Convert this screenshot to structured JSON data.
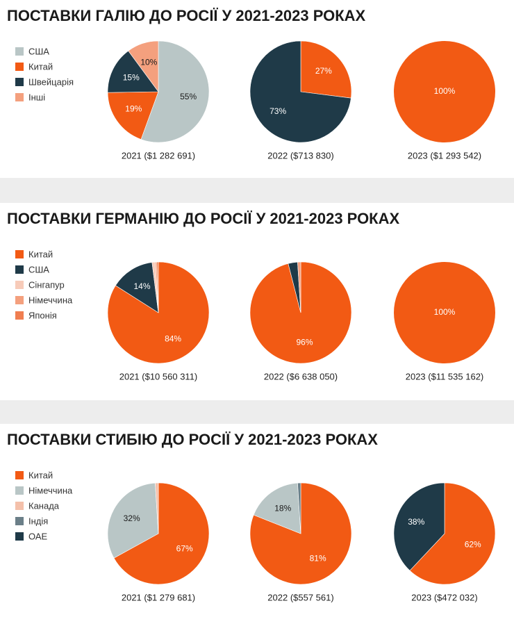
{
  "chart_data": [
    {
      "type": "pie",
      "title": "ПОСТАВКИ ГАЛІЮ ДО РОСІЇ У 2021-2023 РОКАХ",
      "categories": [
        "США",
        "Китай",
        "Швейцарія",
        "Інші"
      ],
      "colors": [
        "#b9c6c6",
        "#f25a14",
        "#1f3a48",
        "#f4a07e"
      ],
      "pies": [
        {
          "caption": "2021 ($1 282 691)",
          "values": [
            55,
            19,
            15,
            10
          ],
          "value_labels": [
            "55%",
            "19%",
            "15%",
            "10%"
          ]
        },
        {
          "caption": "2022 ($713 830)",
          "values": [
            0,
            27,
            73,
            0
          ],
          "value_labels": [
            null,
            "27%",
            "73%",
            null
          ]
        },
        {
          "caption": "2023 ($1 293 542)",
          "values": [
            0,
            100,
            0,
            0
          ],
          "value_labels": [
            null,
            "100%",
            null,
            null
          ]
        }
      ]
    },
    {
      "type": "pie",
      "title": "ПОСТАВКИ ГЕРМАНІЮ ДО РОСІЇ У 2021-2023 РОКАХ",
      "categories": [
        "Китай",
        "США",
        "Сінгапур",
        "Німеччина",
        "Японія"
      ],
      "colors": [
        "#f25a14",
        "#1f3a48",
        "#f7cbb9",
        "#f4a07e",
        "#f07e50"
      ],
      "pies": [
        {
          "caption": "2021 ($10 560 311)",
          "values": [
            84,
            14,
            1,
            0.5,
            0.5
          ],
          "value_labels": [
            "84%",
            "14%",
            null,
            null,
            null
          ]
        },
        {
          "caption": "2022 ($6 638 050)",
          "values": [
            96,
            3,
            0,
            1,
            0
          ],
          "value_labels": [
            "96%",
            null,
            null,
            null,
            null
          ]
        },
        {
          "caption": "2023 ($11 535 162)",
          "values": [
            100,
            0,
            0,
            0,
            0
          ],
          "value_labels": [
            "100%",
            null,
            null,
            null,
            null
          ]
        }
      ]
    },
    {
      "type": "pie",
      "title": "ПОСТАВКИ СТИБІЮ ДО РОСІЇ У 2021-2023 РОКАХ",
      "categories": [
        "Китай",
        "Німеччина",
        "Канада",
        "Індія",
        "ОАЕ"
      ],
      "colors": [
        "#f25a14",
        "#b9c6c6",
        "#f4c0aa",
        "#6b7f88",
        "#1f3a48"
      ],
      "pies": [
        {
          "caption": "2021 ($1 279 681)",
          "values": [
            67,
            32,
            1,
            0,
            0
          ],
          "value_labels": [
            "67%",
            "32%",
            null,
            null,
            null
          ]
        },
        {
          "caption": "2022 ($557 561)",
          "values": [
            81,
            18,
            0,
            1,
            0
          ],
          "value_labels": [
            "81%",
            "18%",
            null,
            null,
            null
          ]
        },
        {
          "caption": "2023 ($472 032)",
          "values": [
            62,
            0,
            0,
            0,
            38
          ],
          "value_labels": [
            "62%",
            null,
            null,
            null,
            "38%"
          ]
        }
      ]
    }
  ]
}
